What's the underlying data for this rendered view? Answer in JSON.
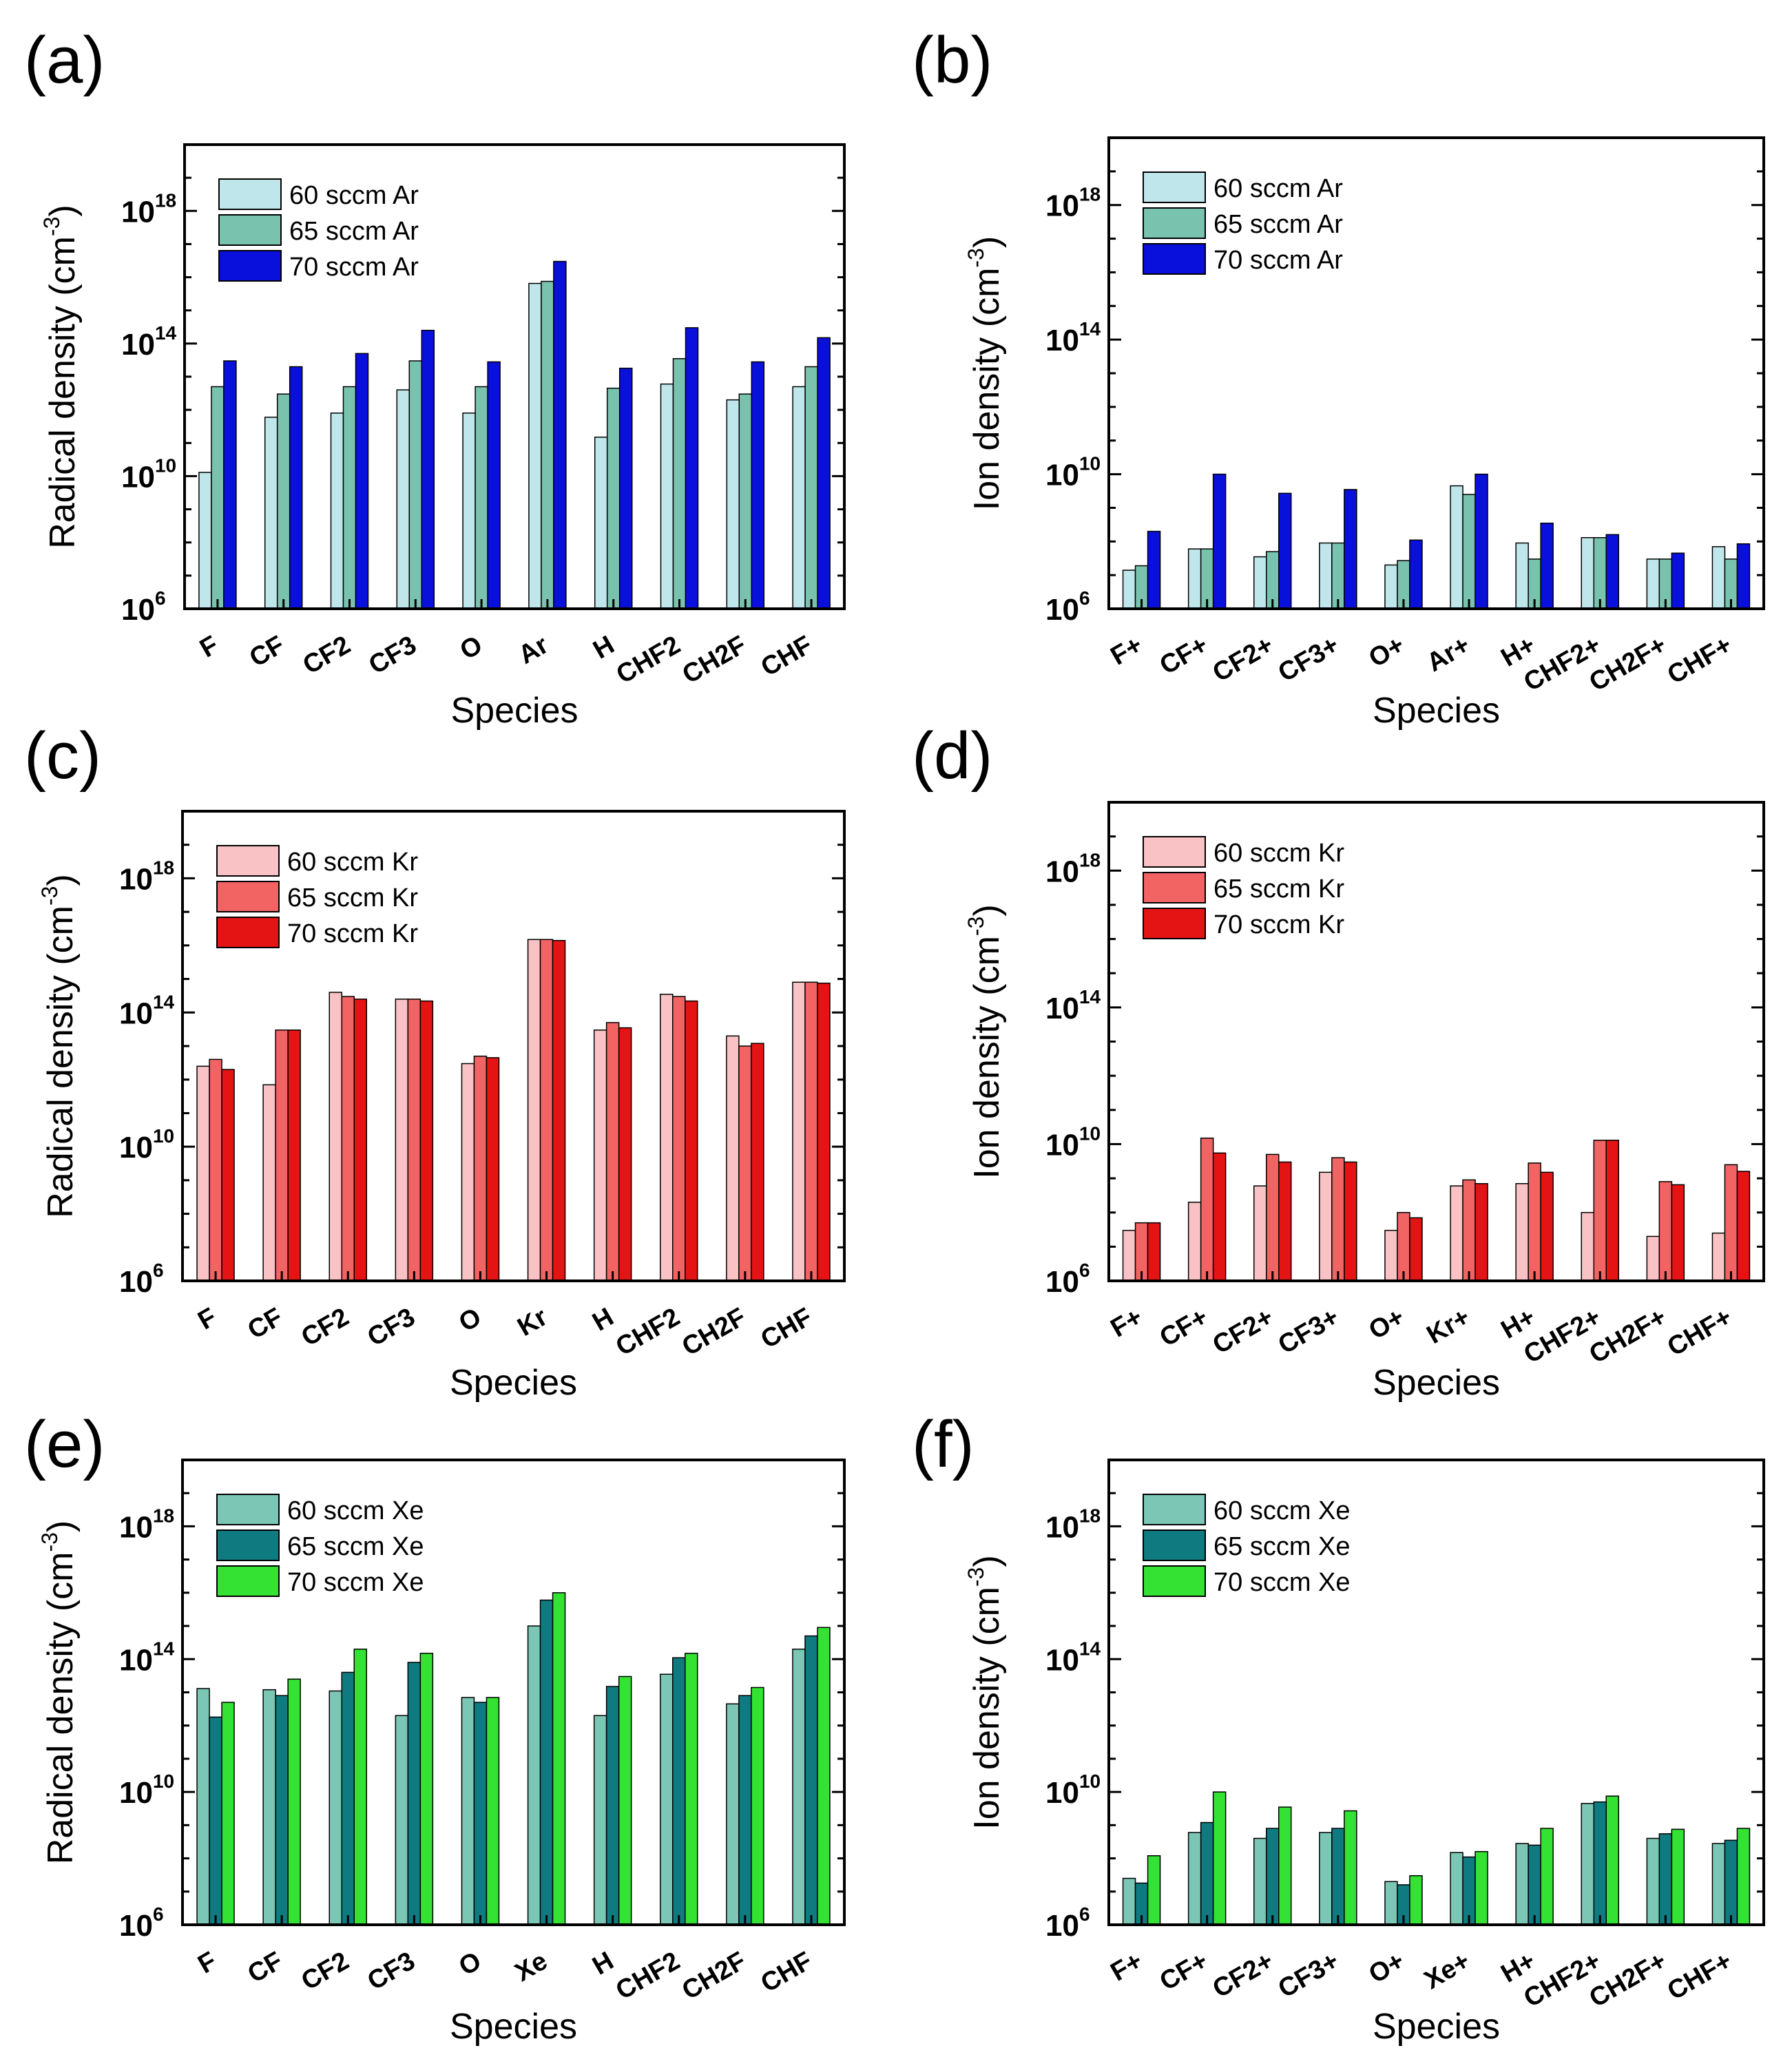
{
  "figure": {
    "colors": {
      "ar": [
        "#bfe6ea",
        "#79c2ad",
        "#0a10dc"
      ],
      "kr": [
        "#f9c2c4",
        "#f26363",
        "#e41414"
      ],
      "xe": [
        "#7cc6b5",
        "#0f7a80",
        "#33e233"
      ]
    }
  },
  "chart_data": [
    {
      "panel": "(a)",
      "type": "bar",
      "scale": "log",
      "ylabel": "Radical density (cm",
      "ylabel_sup": "-3",
      "ylabel_close": ")",
      "xlabel": "Species",
      "ylim_exp": [
        6,
        20
      ],
      "ytick_exps": [
        6,
        10,
        14,
        18
      ],
      "categories": [
        "F",
        "CF",
        "CF2",
        "CF3",
        "O",
        "Ar",
        "H",
        "CHF2",
        "CH2F",
        "CHF"
      ],
      "series": [
        {
          "name": "60 sccm Ar",
          "values": [
            13000000000.0,
            600000000000.0,
            800000000000.0,
            4000000000000.0,
            800000000000.0,
            6500000000000000.0,
            150000000000.0,
            6000000000000.0,
            2000000000000.0,
            5000000000000.0
          ]
        },
        {
          "name": "65 sccm Ar",
          "values": [
            5000000000000.0,
            3000000000000.0,
            5000000000000.0,
            30000000000000.0,
            5000000000000.0,
            7500000000000000.0,
            4500000000000.0,
            35000000000000.0,
            3000000000000.0,
            20000000000000.0
          ]
        },
        {
          "name": "70 sccm Ar",
          "values": [
            30000000000000.0,
            20000000000000.0,
            50000000000000.0,
            250000000000000.0,
            28000000000000.0,
            3e+16,
            18000000000000.0,
            300000000000000.0,
            28000000000000.0,
            150000000000000.0
          ]
        }
      ]
    },
    {
      "panel": "(b)",
      "type": "bar",
      "scale": "log",
      "ylabel": "Ion density (cm",
      "ylabel_sup": "-3",
      "ylabel_close": ")",
      "xlabel": "Species",
      "ylim_exp": [
        6,
        20
      ],
      "ytick_exps": [
        6,
        10,
        14,
        18
      ],
      "categories": [
        "F+",
        "CF+",
        "CF2+",
        "CF3+",
        "O+",
        "Ar+",
        "H+",
        "CHF2+",
        "CH2F+",
        "CHF+"
      ],
      "series": [
        {
          "name": "60 sccm Ar",
          "values": [
            14000000.0,
            60000000.0,
            35000000.0,
            90000000.0,
            20000000.0,
            4500000000.0,
            90000000.0,
            130000000.0,
            30000000.0,
            70000000.0
          ]
        },
        {
          "name": "65 sccm Ar",
          "values": [
            19000000.0,
            60000000.0,
            50000000.0,
            90000000.0,
            27000000.0,
            2500000000.0,
            30000000.0,
            130000000.0,
            30000000.0,
            30000000.0
          ]
        },
        {
          "name": "70 sccm Ar",
          "values": [
            200000000.0,
            10000000000.0,
            2700000000.0,
            3500000000.0,
            110000000.0,
            10000000000.0,
            350000000.0,
            160000000.0,
            45000000.0,
            85000000.0
          ]
        }
      ]
    },
    {
      "panel": "(c)",
      "type": "bar",
      "scale": "log",
      "ylabel": "Radical density (cm",
      "ylabel_sup": "-3",
      "ylabel_close": ")",
      "xlabel": "Species",
      "ylim_exp": [
        6,
        20
      ],
      "ytick_exps": [
        6,
        10,
        14,
        18
      ],
      "categories": [
        "F",
        "CF",
        "CF2",
        "CF3",
        "O",
        "Kr",
        "H",
        "CHF2",
        "CH2F",
        "CHF"
      ],
      "series": [
        {
          "name": "60 sccm Kr",
          "values": [
            2500000000000.0,
            700000000000.0,
            400000000000000.0,
            250000000000000.0,
            3000000000000.0,
            1.5e+16,
            30000000000000.0,
            350000000000000.0,
            20000000000000.0,
            800000000000000.0
          ]
        },
        {
          "name": "65 sccm Kr",
          "values": [
            4000000000000.0,
            30000000000000.0,
            300000000000000.0,
            250000000000000.0,
            5000000000000.0,
            1.5e+16,
            50000000000000.0,
            300000000000000.0,
            10000000000000.0,
            800000000000000.0
          ]
        },
        {
          "name": "70 sccm Kr",
          "values": [
            2000000000000.0,
            30000000000000.0,
            250000000000000.0,
            220000000000000.0,
            4500000000000.0,
            1.4e+16,
            35000000000000.0,
            220000000000000.0,
            12000000000000.0,
            750000000000000.0
          ]
        }
      ]
    },
    {
      "panel": "(d)",
      "type": "bar",
      "scale": "log",
      "ylabel": "Ion density (cm",
      "ylabel_sup": "-3",
      "ylabel_close": ")",
      "xlabel": "Species",
      "ylim_exp": [
        6,
        20
      ],
      "ytick_exps": [
        6,
        10,
        14,
        18
      ],
      "categories": [
        "F+",
        "CF+",
        "CF2+",
        "CF3+",
        "O+",
        "Kr+",
        "H+",
        "CHF2+",
        "CH2F+",
        "CHF+"
      ],
      "series": [
        {
          "name": "60 sccm Kr",
          "values": [
            30000000.0,
            200000000.0,
            600000000.0,
            1500000000.0,
            30000000.0,
            600000000.0,
            700000000.0,
            100000000.0,
            20000000.0,
            25000000.0
          ]
        },
        {
          "name": "65 sccm Kr",
          "values": [
            50000000.0,
            15000000000.0,
            5000000000.0,
            4000000000.0,
            100000000.0,
            900000000.0,
            2800000000.0,
            13000000000.0,
            800000000.0,
            2500000000.0
          ]
        },
        {
          "name": "70 sccm Kr",
          "values": [
            50000000.0,
            5500000000.0,
            3000000000.0,
            3000000000.0,
            70000000.0,
            700000000.0,
            1500000000.0,
            13000000000.0,
            650000000.0,
            1600000000.0
          ]
        }
      ]
    },
    {
      "panel": "(e)",
      "type": "bar",
      "scale": "log",
      "ylabel": "Radical density (cm",
      "ylabel_sup": "-3",
      "ylabel_close": ")",
      "xlabel": "Species",
      "ylim_exp": [
        6,
        20
      ],
      "ytick_exps": [
        6,
        10,
        14,
        18
      ],
      "categories": [
        "F",
        "CF",
        "CF2",
        "CF3",
        "O",
        "Xe",
        "H",
        "CHF2",
        "CH2F",
        "CHF"
      ],
      "series": [
        {
          "name": "60 sccm Xe",
          "values": [
            13000000000000.0,
            12000000000000.0,
            11000000000000.0,
            2000000000000.0,
            7000000000000.0,
            1000000000000000.0,
            2000000000000.0,
            35000000000000.0,
            4500000000000.0,
            200000000000000.0
          ]
        },
        {
          "name": "65 sccm Xe",
          "values": [
            1800000000000.0,
            8000000000000.0,
            40000000000000.0,
            80000000000000.0,
            5000000000000.0,
            6000000000000000.0,
            15000000000000.0,
            110000000000000.0,
            8000000000000.0,
            500000000000000.0
          ]
        },
        {
          "name": "70 sccm Xe",
          "values": [
            5000000000000.0,
            25000000000000.0,
            200000000000000.0,
            150000000000000.0,
            7000000000000.0,
            1e+16,
            30000000000000.0,
            150000000000000.0,
            14000000000000.0,
            900000000000000.0
          ]
        }
      ]
    },
    {
      "panel": "(f)",
      "type": "bar",
      "scale": "log",
      "ylabel": "Ion density (cm",
      "ylabel_sup": "-3",
      "ylabel_close": ")",
      "xlabel": "Species",
      "ylim_exp": [
        6,
        20
      ],
      "ytick_exps": [
        6,
        10,
        14,
        18
      ],
      "categories": [
        "F+",
        "CF+",
        "CF2+",
        "CF3+",
        "O+",
        "Xe+",
        "H+",
        "CHF2+",
        "CH2F+",
        "CHF+"
      ],
      "series": [
        {
          "name": "60 sccm Xe",
          "values": [
            25000000.0,
            600000000.0,
            400000000.0,
            600000000.0,
            20000000.0,
            150000000.0,
            280000000.0,
            4500000000.0,
            400000000.0,
            280000000.0
          ]
        },
        {
          "name": "65 sccm Xe",
          "values": [
            18000000.0,
            1200000000.0,
            800000000.0,
            800000000.0,
            16000000.0,
            110000000.0,
            250000000.0,
            5000000000.0,
            550000000.0,
            350000000.0
          ]
        },
        {
          "name": "70 sccm Xe",
          "values": [
            120000000.0,
            10000000000.0,
            3500000000.0,
            2700000000.0,
            30000000.0,
            160000000.0,
            800000000.0,
            7500000000.0,
            750000000.0,
            800000000.0
          ]
        }
      ]
    }
  ]
}
